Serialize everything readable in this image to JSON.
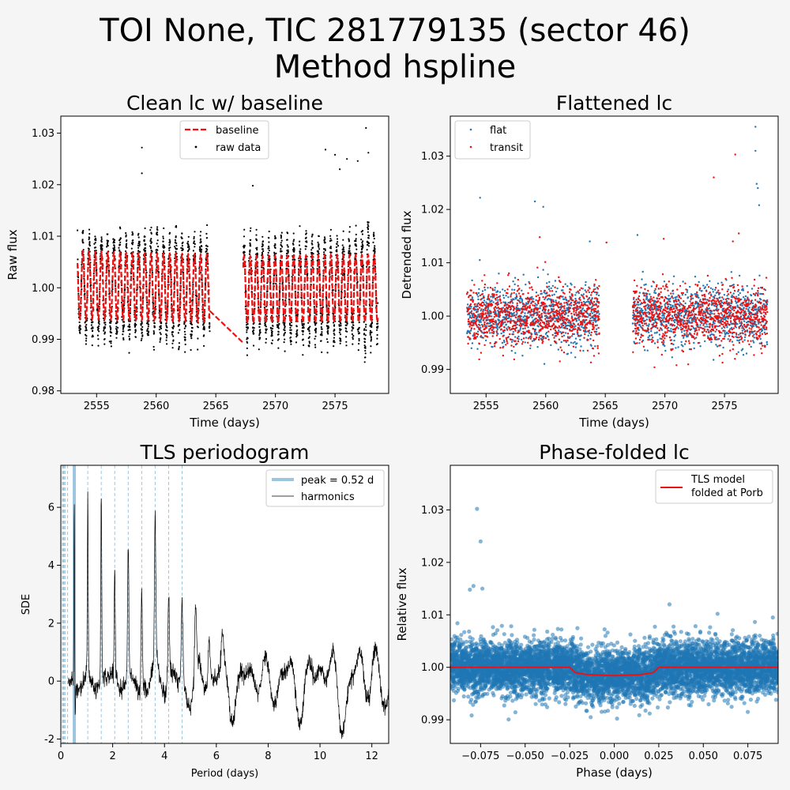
{
  "figure": {
    "title_line1": "TOI None, TIC 281779135 (sector 46)",
    "title_line2": "Method hspline"
  },
  "colors": {
    "figure_bg": "#f5f5f5",
    "axes_bg": "#ffffff",
    "red": "#ee1111",
    "blue": "#1f77b4",
    "light_blue": "#9ec5df",
    "black": "#000000"
  },
  "chart_data": [
    {
      "type": "scatter",
      "title": "Clean lc w/ baseline",
      "xlabel": "Time (days)",
      "ylabel": "Raw flux",
      "xlim": [
        2552.0,
        2579.5
      ],
      "ylim": [
        0.9795,
        1.0333
      ],
      "xticks": [
        2555,
        2560,
        2565,
        2570,
        2575
      ],
      "yticks": [
        0.98,
        0.99,
        1.0,
        1.01,
        1.02,
        1.03
      ],
      "ytick_labels": [
        "0.98",
        "0.99",
        "1.00",
        "1.01",
        "1.02",
        "1.03"
      ],
      "legend": {
        "placement": "upper-center",
        "entries": [
          {
            "label": "baseline",
            "style": "dashed-line",
            "color": "#ee1111"
          },
          {
            "label": "raw data",
            "style": "dot",
            "color": "#000000"
          }
        ]
      },
      "segments": [
        [
          2553.4,
          2564.5
        ],
        [
          2567.3,
          2578.6
        ]
      ],
      "oscillation": {
        "period_days": 0.52,
        "amplitude_raw": 0.0085,
        "noise_raw": 0.0018,
        "baseline_amplitude": 0.0065
      },
      "baseline_gap_line": [
        [
          2564.5,
          0.9955
        ],
        [
          2567.3,
          0.9893
        ]
      ],
      "outliers": [
        [
          2558.8,
          1.0272
        ],
        [
          2558.8,
          1.0222
        ],
        [
          2568.1,
          1.0198
        ],
        [
          2574.2,
          1.0268
        ],
        [
          2575.0,
          1.0258
        ],
        [
          2575.4,
          1.023
        ],
        [
          2576.0,
          1.025
        ],
        [
          2576.9,
          1.0246
        ],
        [
          2577.6,
          1.031
        ],
        [
          2577.8,
          1.0262
        ]
      ]
    },
    {
      "type": "scatter",
      "title": "Flattened lc",
      "xlabel": "Time (days)",
      "ylabel": "Detrended flux",
      "xlim": [
        2552.0,
        2579.5
      ],
      "ylim": [
        0.9855,
        1.0375
      ],
      "xticks": [
        2555,
        2560,
        2565,
        2570,
        2575
      ],
      "yticks": [
        0.99,
        1.0,
        1.01,
        1.02,
        1.03
      ],
      "ytick_labels": [
        "0.99",
        "1.00",
        "1.01",
        "1.02",
        "1.03"
      ],
      "legend": {
        "placement": "upper-left",
        "entries": [
          {
            "label": "flat",
            "style": "dot",
            "color": "#1f77b4"
          },
          {
            "label": "transit",
            "style": "dot",
            "color": "#ee1111"
          }
        ]
      },
      "segments": [
        [
          2553.4,
          2564.5
        ],
        [
          2567.3,
          2578.6
        ]
      ],
      "noise": 0.0028,
      "outliers_flat": [
        [
          2554.5,
          1.0222
        ],
        [
          2559.1,
          1.0215
        ],
        [
          2559.8,
          1.0205
        ],
        [
          2563.7,
          1.014
        ],
        [
          2567.7,
          1.0152
        ],
        [
          2577.6,
          1.0355
        ],
        [
          2577.6,
          1.031
        ],
        [
          2577.7,
          1.0248
        ],
        [
          2577.8,
          1.024
        ],
        [
          2577.9,
          1.0208
        ]
      ],
      "outliers_transit": [
        [
          2559.5,
          1.0148
        ],
        [
          2565.1,
          1.0138
        ],
        [
          2569.9,
          1.0145
        ],
        [
          2574.1,
          1.026
        ],
        [
          2575.9,
          1.0303
        ],
        [
          2576.2,
          1.0155
        ],
        [
          2575.7,
          1.014
        ]
      ]
    },
    {
      "type": "line",
      "title": "TLS periodogram",
      "xlabel": "Period (days)",
      "ylabel": "SDE",
      "xlim": [
        0,
        12.65
      ],
      "ylim": [
        -2.15,
        7.45
      ],
      "xticks": [
        0,
        2,
        4,
        6,
        8,
        10,
        12
      ],
      "yticks": [
        -2,
        0,
        2,
        4,
        6
      ],
      "legend": {
        "placement": "upper-right",
        "entries": [
          {
            "label": "peak = 0.52 d",
            "style": "thick-line",
            "color": "#9ec5df"
          },
          {
            "label": "harmonics",
            "style": "thin-line",
            "color": "#000000"
          }
        ]
      },
      "peak_period": 0.52,
      "harmonic_lines": [
        0.065,
        0.087,
        0.104,
        0.13,
        0.173,
        0.26,
        1.04,
        1.56,
        2.08,
        2.6,
        3.12,
        3.64,
        4.16,
        4.68
      ],
      "sharp_peaks": [
        [
          0.52,
          6.9
        ],
        [
          1.04,
          6.55
        ],
        [
          1.56,
          6.8
        ],
        [
          2.08,
          4.1
        ],
        [
          2.6,
          5.1
        ],
        [
          3.12,
          3.7
        ],
        [
          3.64,
          5.2
        ],
        [
          4.16,
          3.1
        ],
        [
          4.68,
          3.0
        ],
        [
          5.2,
          2.55
        ],
        [
          5.72,
          1.9
        ],
        [
          6.24,
          1.35
        ]
      ],
      "dip": [
        0.55,
        -1.6
      ]
    },
    {
      "type": "scatter",
      "title": "Phase-folded lc",
      "xlabel": "Phase (days)",
      "ylabel": "Relative flux",
      "xlim": [
        -0.092,
        0.092
      ],
      "ylim": [
        0.9855,
        1.0385
      ],
      "xticks": [
        -0.075,
        -0.05,
        -0.025,
        0.0,
        0.025,
        0.05,
        0.075
      ],
      "xtick_labels": [
        "−0.075",
        "−0.050",
        "−0.025",
        "0.000",
        "0.025",
        "0.050",
        "0.075"
      ],
      "yticks": [
        0.99,
        1.0,
        1.01,
        1.02,
        1.03
      ],
      "ytick_labels": [
        "0.99",
        "1.00",
        "1.01",
        "1.02",
        "1.03"
      ],
      "legend": {
        "placement": "upper-right",
        "entries": [
          {
            "label": "TLS model\nfolded at Porb",
            "style": "line",
            "color": "#ee1111"
          }
        ]
      },
      "noise": 0.0025,
      "transit_model": [
        [
          -0.092,
          1.0
        ],
        [
          -0.025,
          1.0
        ],
        [
          -0.022,
          0.999
        ],
        [
          -0.015,
          0.9986
        ],
        [
          0.0,
          0.9984
        ],
        [
          0.015,
          0.9986
        ],
        [
          0.022,
          0.999
        ],
        [
          0.025,
          1.0
        ],
        [
          0.092,
          1.0
        ]
      ],
      "outliers": [
        [
          -0.077,
          1.0302
        ],
        [
          -0.075,
          1.024
        ],
        [
          -0.079,
          1.0155
        ],
        [
          -0.074,
          1.015
        ],
        [
          -0.081,
          1.0148
        ],
        [
          0.031,
          1.012
        ],
        [
          -0.088,
          1.0084
        ],
        [
          0.058,
          1.0102
        ],
        [
          0.089,
          1.0095
        ]
      ]
    }
  ]
}
